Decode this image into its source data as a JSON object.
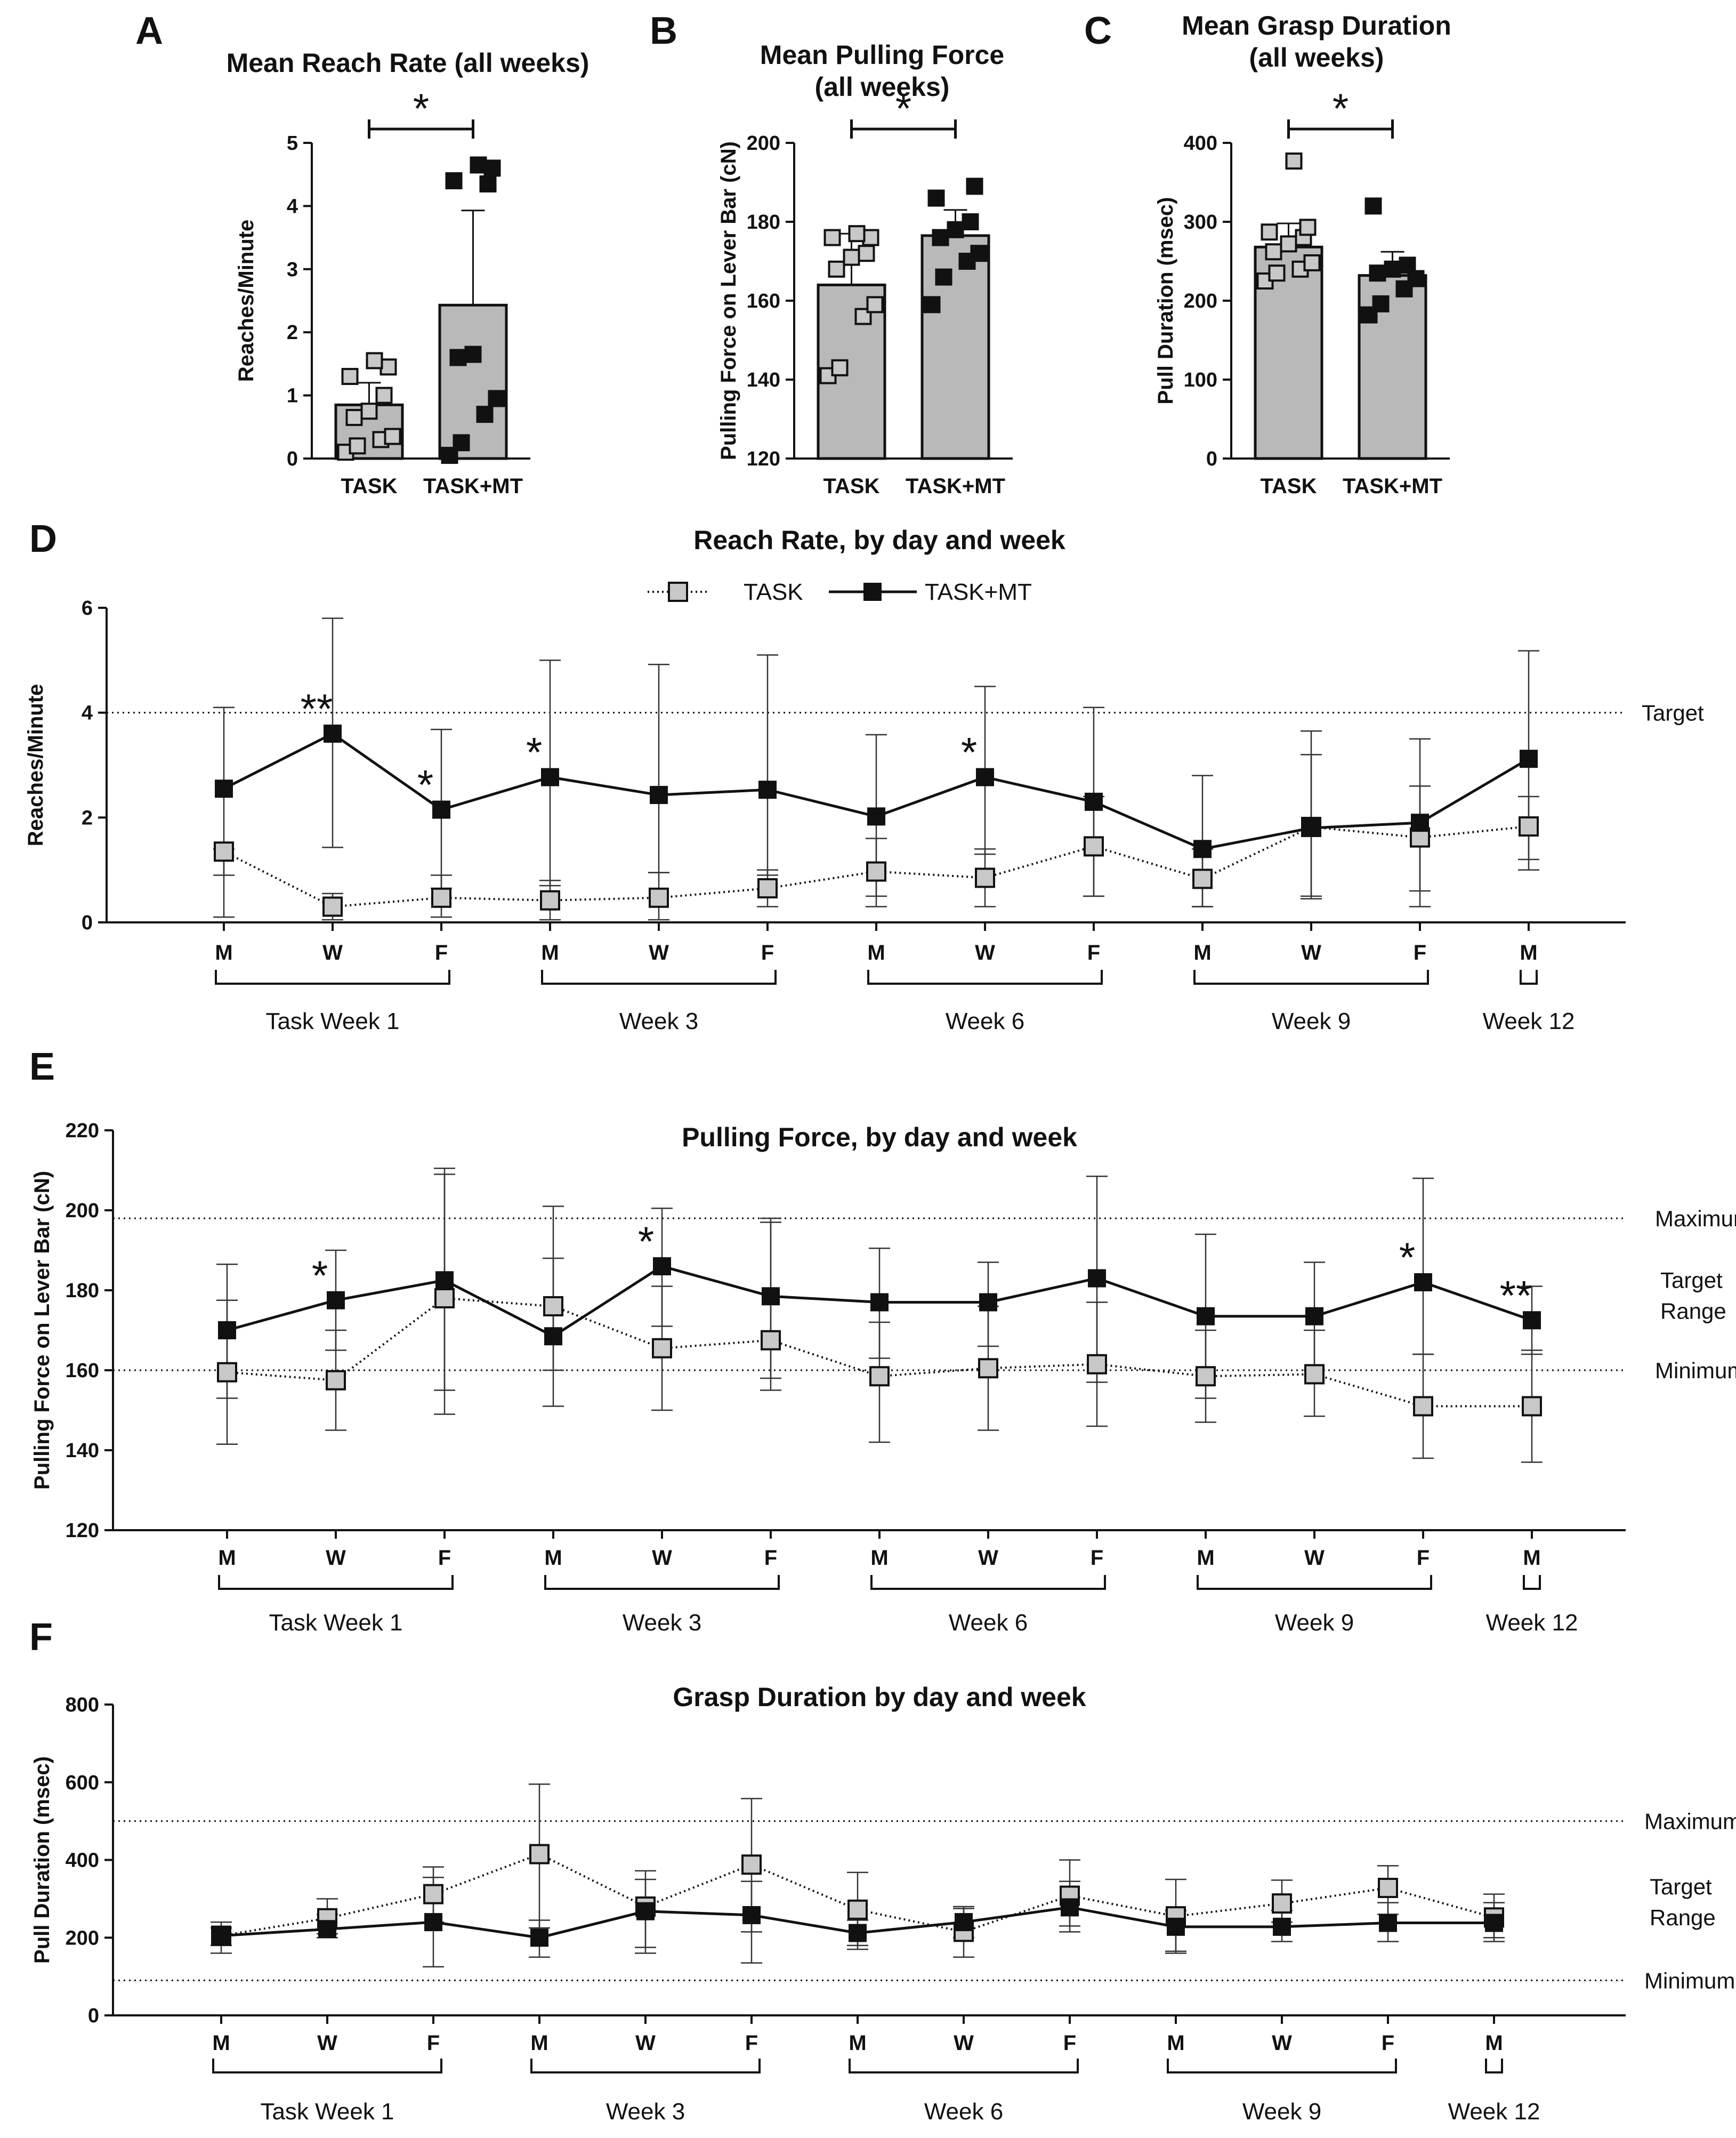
{
  "chart_data": [
    {
      "id": "A",
      "type": "bar",
      "panel_letter": "A",
      "title": "Mean Reach Rate (all weeks)",
      "ylabel": "Reaches/Minute",
      "ylim": [
        0,
        5
      ],
      "yticks": [
        0,
        1,
        2,
        3,
        4,
        5
      ],
      "categories": [
        "TASK",
        "TASK+MT"
      ],
      "values": [
        0.85,
        2.43
      ],
      "error_upper": [
        1.2,
        3.93
      ],
      "points": [
        [
          0.1,
          0.2,
          0.3,
          0.35,
          0.65,
          0.75,
          1.0,
          1.3,
          1.45,
          1.55
        ],
        [
          0.05,
          0.25,
          0.7,
          0.95,
          1.6,
          1.65,
          4.35,
          4.4,
          4.6,
          4.65
        ]
      ],
      "significance": "*"
    },
    {
      "id": "B",
      "type": "bar",
      "panel_letter": "B",
      "title": "Mean Pulling Force",
      "title2": "(all weeks)",
      "ylabel": "Pulling Force on Lever Bar (cN)",
      "ylim": [
        120,
        200
      ],
      "yticks": [
        120,
        140,
        160,
        180,
        200
      ],
      "categories": [
        "TASK",
        "TASK+MT"
      ],
      "values": [
        164,
        176.5
      ],
      "error_upper": [
        177,
        183
      ],
      "points": [
        [
          141,
          143,
          156,
          159,
          168,
          171,
          172,
          176,
          176,
          177
        ],
        [
          159,
          166,
          170,
          172,
          176,
          178,
          180,
          186,
          189
        ]
      ],
      "significance": "*"
    },
    {
      "id": "C",
      "type": "bar",
      "panel_letter": "C",
      "title": "Mean Grasp Duration",
      "title2": "(all weeks)",
      "ylabel": "Pull Duration (msec)",
      "ylim": [
        0,
        400
      ],
      "yticks": [
        0,
        100,
        200,
        300,
        400
      ],
      "categories": [
        "TASK",
        "TASK+MT"
      ],
      "values": [
        268,
        232
      ],
      "error_upper": [
        298,
        262
      ],
      "points": [
        [
          225,
          235,
          240,
          248,
          262,
          272,
          280,
          287,
          293,
          377
        ],
        [
          182,
          196,
          215,
          228,
          235,
          240,
          245,
          320
        ]
      ],
      "significance": "*"
    },
    {
      "id": "D",
      "type": "line",
      "panel_letter": "D",
      "title": "Reach Rate, by day and week",
      "ylabel": "Reaches/Minute",
      "ylim": [
        0,
        6
      ],
      "yticks": [
        0,
        2,
        4,
        6
      ],
      "categories": [
        "M",
        "W",
        "F",
        "M",
        "W",
        "F",
        "M",
        "W",
        "F",
        "M",
        "W",
        "F",
        "M"
      ],
      "week_groups": [
        {
          "label": "Task Week 1",
          "start": 0,
          "end": 2
        },
        {
          "label": "Week 3",
          "start": 3,
          "end": 5
        },
        {
          "label": "Week 6",
          "start": 6,
          "end": 8
        },
        {
          "label": "Week 9",
          "start": 9,
          "end": 11
        },
        {
          "label": "Week 12",
          "start": 12,
          "end": 12
        }
      ],
      "legend": [
        "TASK",
        "TASK+MT"
      ],
      "series": [
        {
          "name": "TASK",
          "values": [
            1.35,
            0.3,
            0.47,
            0.42,
            0.47,
            0.65,
            0.97,
            0.85,
            1.45,
            0.83,
            1.82,
            1.62,
            1.83
          ],
          "err_low": [
            0.1,
            0.05,
            0.1,
            0.05,
            0.05,
            0.3,
            0.3,
            0.3,
            0.5,
            0.3,
            0.45,
            0.6,
            1.0
          ],
          "err_high": [
            1.4,
            0.55,
            0.9,
            0.8,
            0.95,
            1.0,
            1.6,
            1.4,
            2.4,
            1.4,
            3.2,
            2.6,
            2.4
          ]
        },
        {
          "name": "TASK+MT",
          "values": [
            2.55,
            3.6,
            2.15,
            2.77,
            2.43,
            2.53,
            2.02,
            2.77,
            2.3,
            1.4,
            1.8,
            1.9,
            3.12
          ],
          "err_low": [
            0.9,
            1.43,
            0.65,
            0.7,
            0.95,
            0.9,
            0.5,
            1.3,
            0.5,
            0.3,
            0.5,
            0.3,
            1.2
          ],
          "err_high": [
            4.1,
            5.8,
            3.68,
            5.0,
            4.92,
            5.1,
            3.58,
            4.5,
            4.1,
            2.8,
            3.65,
            3.5,
            5.18
          ]
        }
      ],
      "reference_lines": [
        {
          "value": 4,
          "label": "Target"
        }
      ],
      "annotations": [
        {
          "index": 1,
          "text": "**"
        },
        {
          "index": 2,
          "text": "*"
        },
        {
          "index": 3,
          "text": "*"
        },
        {
          "index": 7,
          "text": "*"
        }
      ]
    },
    {
      "id": "E",
      "type": "line",
      "panel_letter": "E",
      "title": "Pulling Force, by day and week",
      "ylabel": "Pulling Force on Lever Bar (cN)",
      "ylim": [
        120,
        220
      ],
      "yticks": [
        120,
        140,
        160,
        180,
        200,
        220
      ],
      "categories": [
        "M",
        "W",
        "F",
        "M",
        "W",
        "F",
        "M",
        "W",
        "F",
        "M",
        "W",
        "F",
        "M"
      ],
      "week_groups": [
        {
          "label": "Task Week 1",
          "start": 0,
          "end": 2
        },
        {
          "label": "Week 3",
          "start": 3,
          "end": 5
        },
        {
          "label": "Week 6",
          "start": 6,
          "end": 8
        },
        {
          "label": "Week 9",
          "start": 9,
          "end": 11
        },
        {
          "label": "Week 12",
          "start": 12,
          "end": 12
        }
      ],
      "series": [
        {
          "name": "TASK",
          "values": [
            159.5,
            157.5,
            178,
            176,
            165.5,
            167.5,
            158.5,
            160.5,
            161.5,
            158.5,
            159,
            151,
            151
          ],
          "err_low": [
            141.5,
            145,
            155,
            160,
            150,
            155,
            142,
            145,
            146,
            147,
            148.5,
            138,
            137
          ],
          "err_high": [
            177.5,
            170,
            209,
            201,
            181,
            197,
            172,
            176,
            177,
            170,
            170,
            164,
            165
          ]
        },
        {
          "name": "TASK+MT",
          "values": [
            170,
            177.5,
            182.5,
            168.5,
            186,
            178.5,
            177,
            177,
            183,
            173.5,
            173.5,
            182,
            172.5
          ],
          "err_low": [
            153,
            165,
            149,
            151,
            171,
            158,
            163,
            166,
            157,
            153,
            160,
            164,
            164
          ],
          "err_high": [
            186.5,
            190,
            210.5,
            188,
            200.5,
            198,
            190.5,
            187,
            208.5,
            194,
            187,
            208,
            181
          ]
        }
      ],
      "reference_lines": [
        {
          "value": 198,
          "label": "Maximum"
        },
        {
          "value": 160,
          "label": "Minimum"
        }
      ],
      "range_label": [
        "Target",
        "Range"
      ],
      "annotations": [
        {
          "index": 1,
          "text": "*"
        },
        {
          "index": 4,
          "text": "*"
        },
        {
          "index": 11,
          "text": "*"
        },
        {
          "index": 12,
          "text": "**"
        }
      ]
    },
    {
      "id": "F",
      "type": "line",
      "panel_letter": "F",
      "title": "Grasp Duration by day and week",
      "ylabel": "Pull Duration (msec)",
      "ylim": [
        0,
        800
      ],
      "yticks": [
        0,
        200,
        400,
        600,
        800
      ],
      "categories": [
        "M",
        "W",
        "F",
        "M",
        "W",
        "F",
        "M",
        "W",
        "F",
        "M",
        "W",
        "F",
        "M"
      ],
      "week_groups": [
        {
          "label": "Task Week 1",
          "start": 0,
          "end": 2
        },
        {
          "label": "Week 3",
          "start": 3,
          "end": 5
        },
        {
          "label": "Week 6",
          "start": 6,
          "end": 8
        },
        {
          "label": "Week 9",
          "start": 9,
          "end": 11
        },
        {
          "label": "Week 12",
          "start": 12,
          "end": 12
        }
      ],
      "series": [
        {
          "name": "TASK",
          "values": [
            205,
            250,
            312,
            415,
            280,
            388,
            272,
            215,
            308,
            255,
            288,
            328,
            252
          ],
          "err_low": [
            180,
            210,
            240,
            225,
            160,
            215,
            180,
            150,
            230,
            165,
            240,
            260,
            200
          ],
          "err_high": [
            240,
            300,
            382,
            595,
            372,
            558,
            368,
            280,
            400,
            350,
            348,
            385,
            312
          ]
        },
        {
          "name": "TASK+MT",
          "values": [
            205,
            222,
            240,
            200,
            268,
            258,
            212,
            240,
            278,
            228,
            228,
            238,
            238
          ],
          "err_low": [
            160,
            200,
            125,
            150,
            175,
            135,
            170,
            200,
            215,
            160,
            190,
            190,
            190
          ],
          "err_high": [
            225,
            260,
            355,
            245,
            350,
            345,
            245,
            275,
            345,
            270,
            270,
            290,
            290
          ]
        }
      ],
      "reference_lines": [
        {
          "value": 500,
          "label": "Maximum"
        },
        {
          "value": 90,
          "label": "Minimum"
        }
      ],
      "range_label": [
        "Target",
        "Range"
      ],
      "annotations": []
    }
  ]
}
